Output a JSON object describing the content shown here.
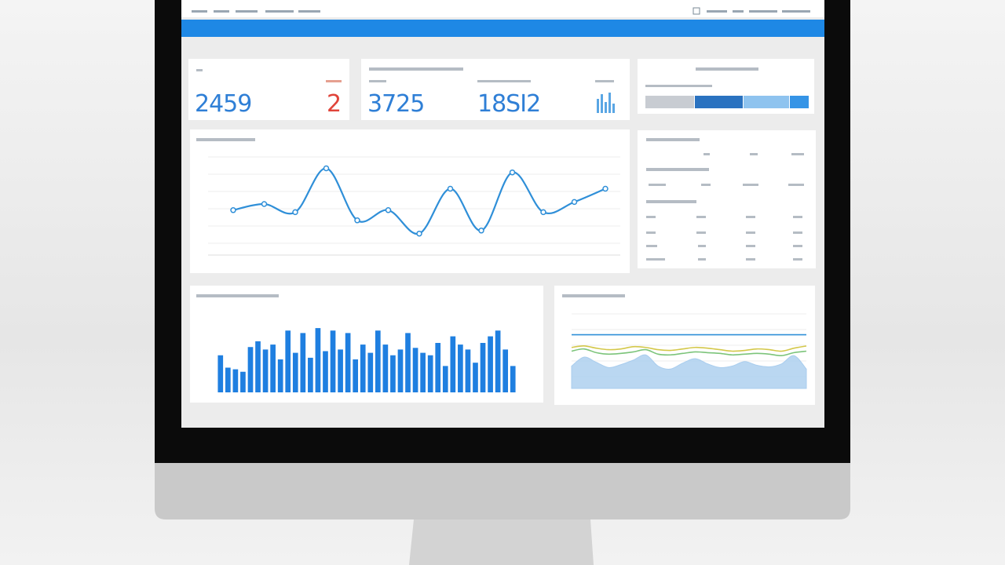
{
  "kpis": [
    2459,
    2,
    3725,
    "18SI2"
  ],
  "line_chart": {
    "type": "line",
    "color": "#2f8fd8",
    "ylim": [
      0,
      100
    ],
    "values": [
      44,
      50,
      42,
      85,
      34,
      44,
      21,
      65,
      24,
      81,
      42,
      52,
      65
    ]
  },
  "bar_chart": {
    "type": "bar",
    "color": "#1f7fe0",
    "ylim": [
      0,
      100
    ],
    "values": [
      45,
      30,
      28,
      25,
      55,
      62,
      52,
      58,
      40,
      75,
      48,
      72,
      42,
      78,
      50,
      75,
      52,
      72,
      40,
      58,
      48,
      75,
      58,
      45,
      52,
      72,
      54,
      48,
      45,
      60,
      32,
      68,
      58,
      52,
      36,
      60,
      68,
      75,
      52,
      32
    ]
  },
  "area_chart": {
    "type": "area",
    "ylim": [
      0,
      100
    ],
    "series": [
      {
        "type": "area",
        "color": "#a9cdee",
        "values": [
          30,
          42,
          35,
          28,
          32,
          38,
          45,
          30,
          26,
          34,
          40,
          33,
          28,
          30,
          36,
          31,
          29,
          33,
          44,
          26
        ]
      },
      {
        "type": "line",
        "color": "#7cc47a",
        "values": [
          50,
          53,
          48,
          46,
          47,
          49,
          52,
          46,
          45,
          47,
          49,
          48,
          47,
          45,
          46,
          47,
          46,
          44,
          48,
          50
        ]
      },
      {
        "type": "line",
        "color": "#d4c84a",
        "values": [
          55,
          57,
          54,
          52,
          53,
          56,
          55,
          52,
          51,
          53,
          55,
          54,
          52,
          50,
          51,
          53,
          52,
          50,
          54,
          57
        ]
      },
      {
        "type": "line",
        "color": "#2f8fd8",
        "values": [
          72,
          72,
          72,
          72,
          72,
          72,
          72,
          72,
          72,
          72,
          72,
          72,
          72,
          72,
          72,
          72,
          72,
          72,
          72,
          72
        ]
      }
    ]
  }
}
